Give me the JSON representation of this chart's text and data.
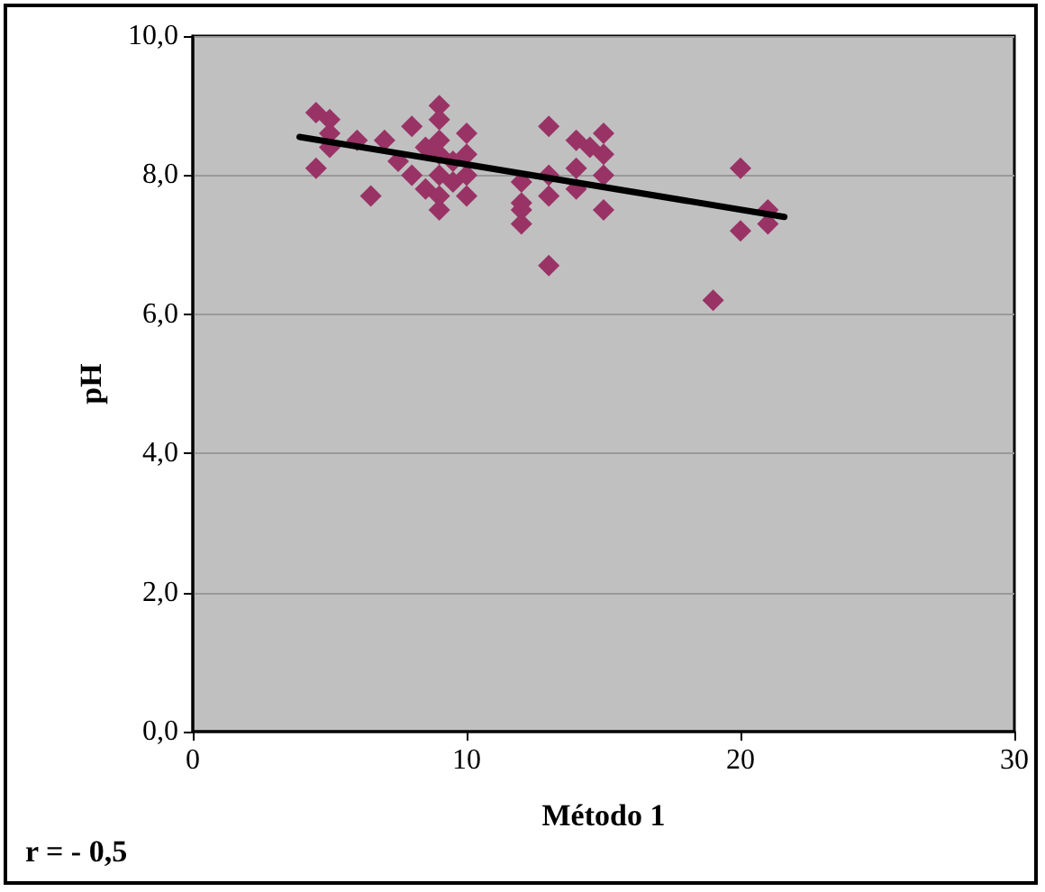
{
  "chart_data": {
    "type": "scatter",
    "xlabel": "Método 1",
    "ylabel": "pH",
    "annotations": [
      "r = - 0,5"
    ],
    "xlim": [
      0,
      30
    ],
    "xticks": [
      0,
      10,
      20,
      30
    ],
    "ylim": [
      0,
      10
    ],
    "yticks": [
      {
        "value": 0,
        "label": "0,0"
      },
      {
        "value": 2,
        "label": "2,0"
      },
      {
        "value": 4,
        "label": "4,0"
      },
      {
        "value": 6,
        "label": "6,0"
      },
      {
        "value": 8,
        "label": "8,0"
      },
      {
        "value": 10,
        "label": "10,0"
      }
    ],
    "grid": "y",
    "marker": "diamond",
    "series": [
      {
        "color": "#993366",
        "x": [
          4.5,
          4.5,
          5,
          5,
          5,
          6,
          6.5,
          7,
          7.5,
          8,
          8,
          8.5,
          8.5,
          9,
          9,
          9,
          9,
          9,
          9,
          9,
          9.5,
          9.5,
          10,
          10,
          10,
          10,
          12,
          12,
          12,
          12,
          13,
          13,
          13,
          13,
          14,
          14,
          14,
          14.5,
          15,
          15,
          15,
          15,
          19,
          20,
          20,
          21,
          21
        ],
        "values": [
          8.9,
          8.1,
          8.8,
          8.6,
          8.4,
          8.5,
          7.7,
          8.5,
          8.2,
          8.7,
          8.0,
          7.8,
          8.4,
          9.0,
          8.8,
          8.5,
          8.3,
          8.0,
          7.7,
          7.5,
          7.9,
          8.2,
          8.6,
          8.3,
          8.0,
          7.7,
          7.9,
          7.6,
          7.5,
          7.3,
          8.7,
          8.0,
          7.7,
          6.7,
          8.5,
          8.1,
          7.8,
          8.4,
          8.6,
          8.3,
          8.0,
          7.5,
          6.2,
          8.1,
          7.2,
          7.5,
          7.3
        ]
      },
      {
        "type": "line",
        "color": "#000000",
        "marker": "none",
        "x": [
          3.9,
          21.6
        ],
        "values": [
          8.55,
          7.4
        ]
      }
    ]
  }
}
